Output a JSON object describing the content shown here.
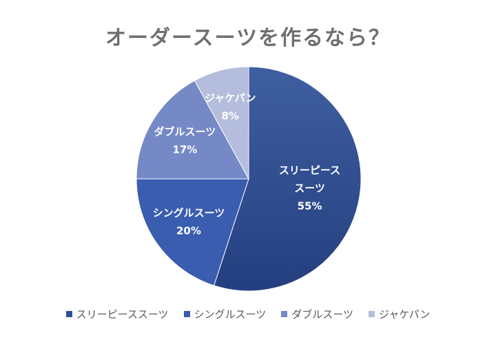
{
  "chart_data": {
    "type": "pie",
    "title": "オーダースーツを作るなら？",
    "categories": [
      "スリーピーススーツ",
      "シングルスーツ",
      "ダブルスーツ",
      "ジャケパン"
    ],
    "labels_display": [
      [
        "スリーピース",
        "スーツ"
      ],
      [
        "シングルスーツ"
      ],
      [
        "ダブルスーツ"
      ],
      [
        "ジャケパン"
      ]
    ],
    "values": [
      55,
      20,
      17,
      8
    ],
    "value_labels": [
      "55%",
      "20%",
      "17%",
      "8%"
    ],
    "colors": [
      "#2f4f94",
      "#3a5db0",
      "#7489c6",
      "#b4bddb"
    ],
    "legend_position": "bottom"
  }
}
